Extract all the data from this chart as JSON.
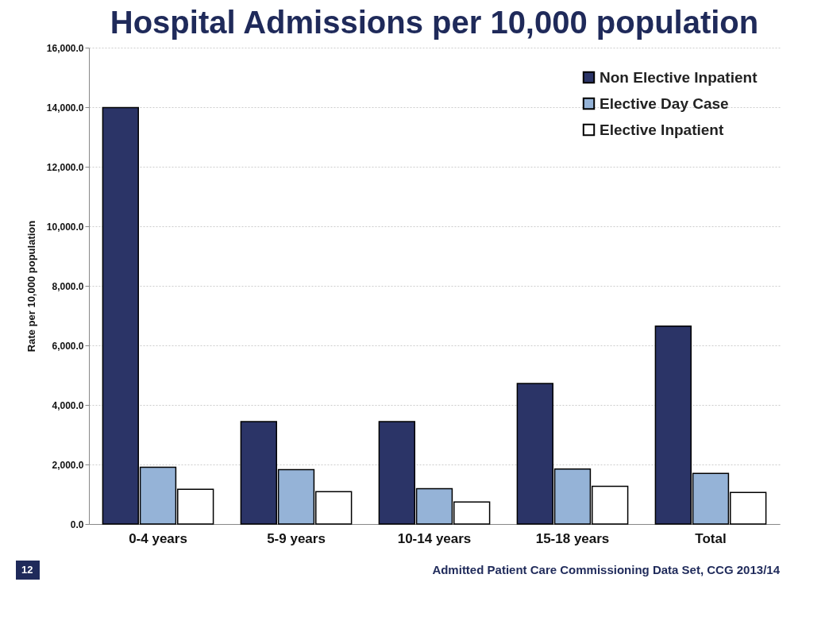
{
  "chart_data": {
    "type": "bar",
    "title": "Hospital Admissions per 10,000 population",
    "ylabel": "Rate per 10,000 population",
    "categories": [
      "0-4 years",
      "5-9 years",
      "10-14 years",
      "15-18 years",
      "Total"
    ],
    "series": [
      {
        "name": "Non Elective Inpatient",
        "color": "#2b3467",
        "values": [
          13990,
          3440,
          3440,
          4720,
          6650
        ]
      },
      {
        "name": "Elective Day Case",
        "color": "#95b3d7",
        "values": [
          1910,
          1830,
          1190,
          1850,
          1700
        ]
      },
      {
        "name": "Elective Inpatient",
        "color": "#ffffff",
        "values": [
          1170,
          1090,
          740,
          1270,
          1060
        ]
      }
    ],
    "ylim": [
      0,
      16000
    ],
    "yticks": [
      {
        "value": 0,
        "label": "0.0"
      },
      {
        "value": 2000,
        "label": "2,000.0"
      },
      {
        "value": 4000,
        "label": "4,000.0"
      },
      {
        "value": 6000,
        "label": "6,000.0"
      },
      {
        "value": 8000,
        "label": "8,000.0"
      },
      {
        "value": 10000,
        "label": "10,000.0"
      },
      {
        "value": 12000,
        "label": "12,000.0"
      },
      {
        "value": 14000,
        "label": "14,000.0"
      },
      {
        "value": 16000,
        "label": "16,000.0"
      }
    ],
    "grid": "y",
    "legend": "top right",
    "annotations": [
      "12",
      "Admitted Patient Care Commissioning Data Set, CCG 2013/14"
    ]
  }
}
